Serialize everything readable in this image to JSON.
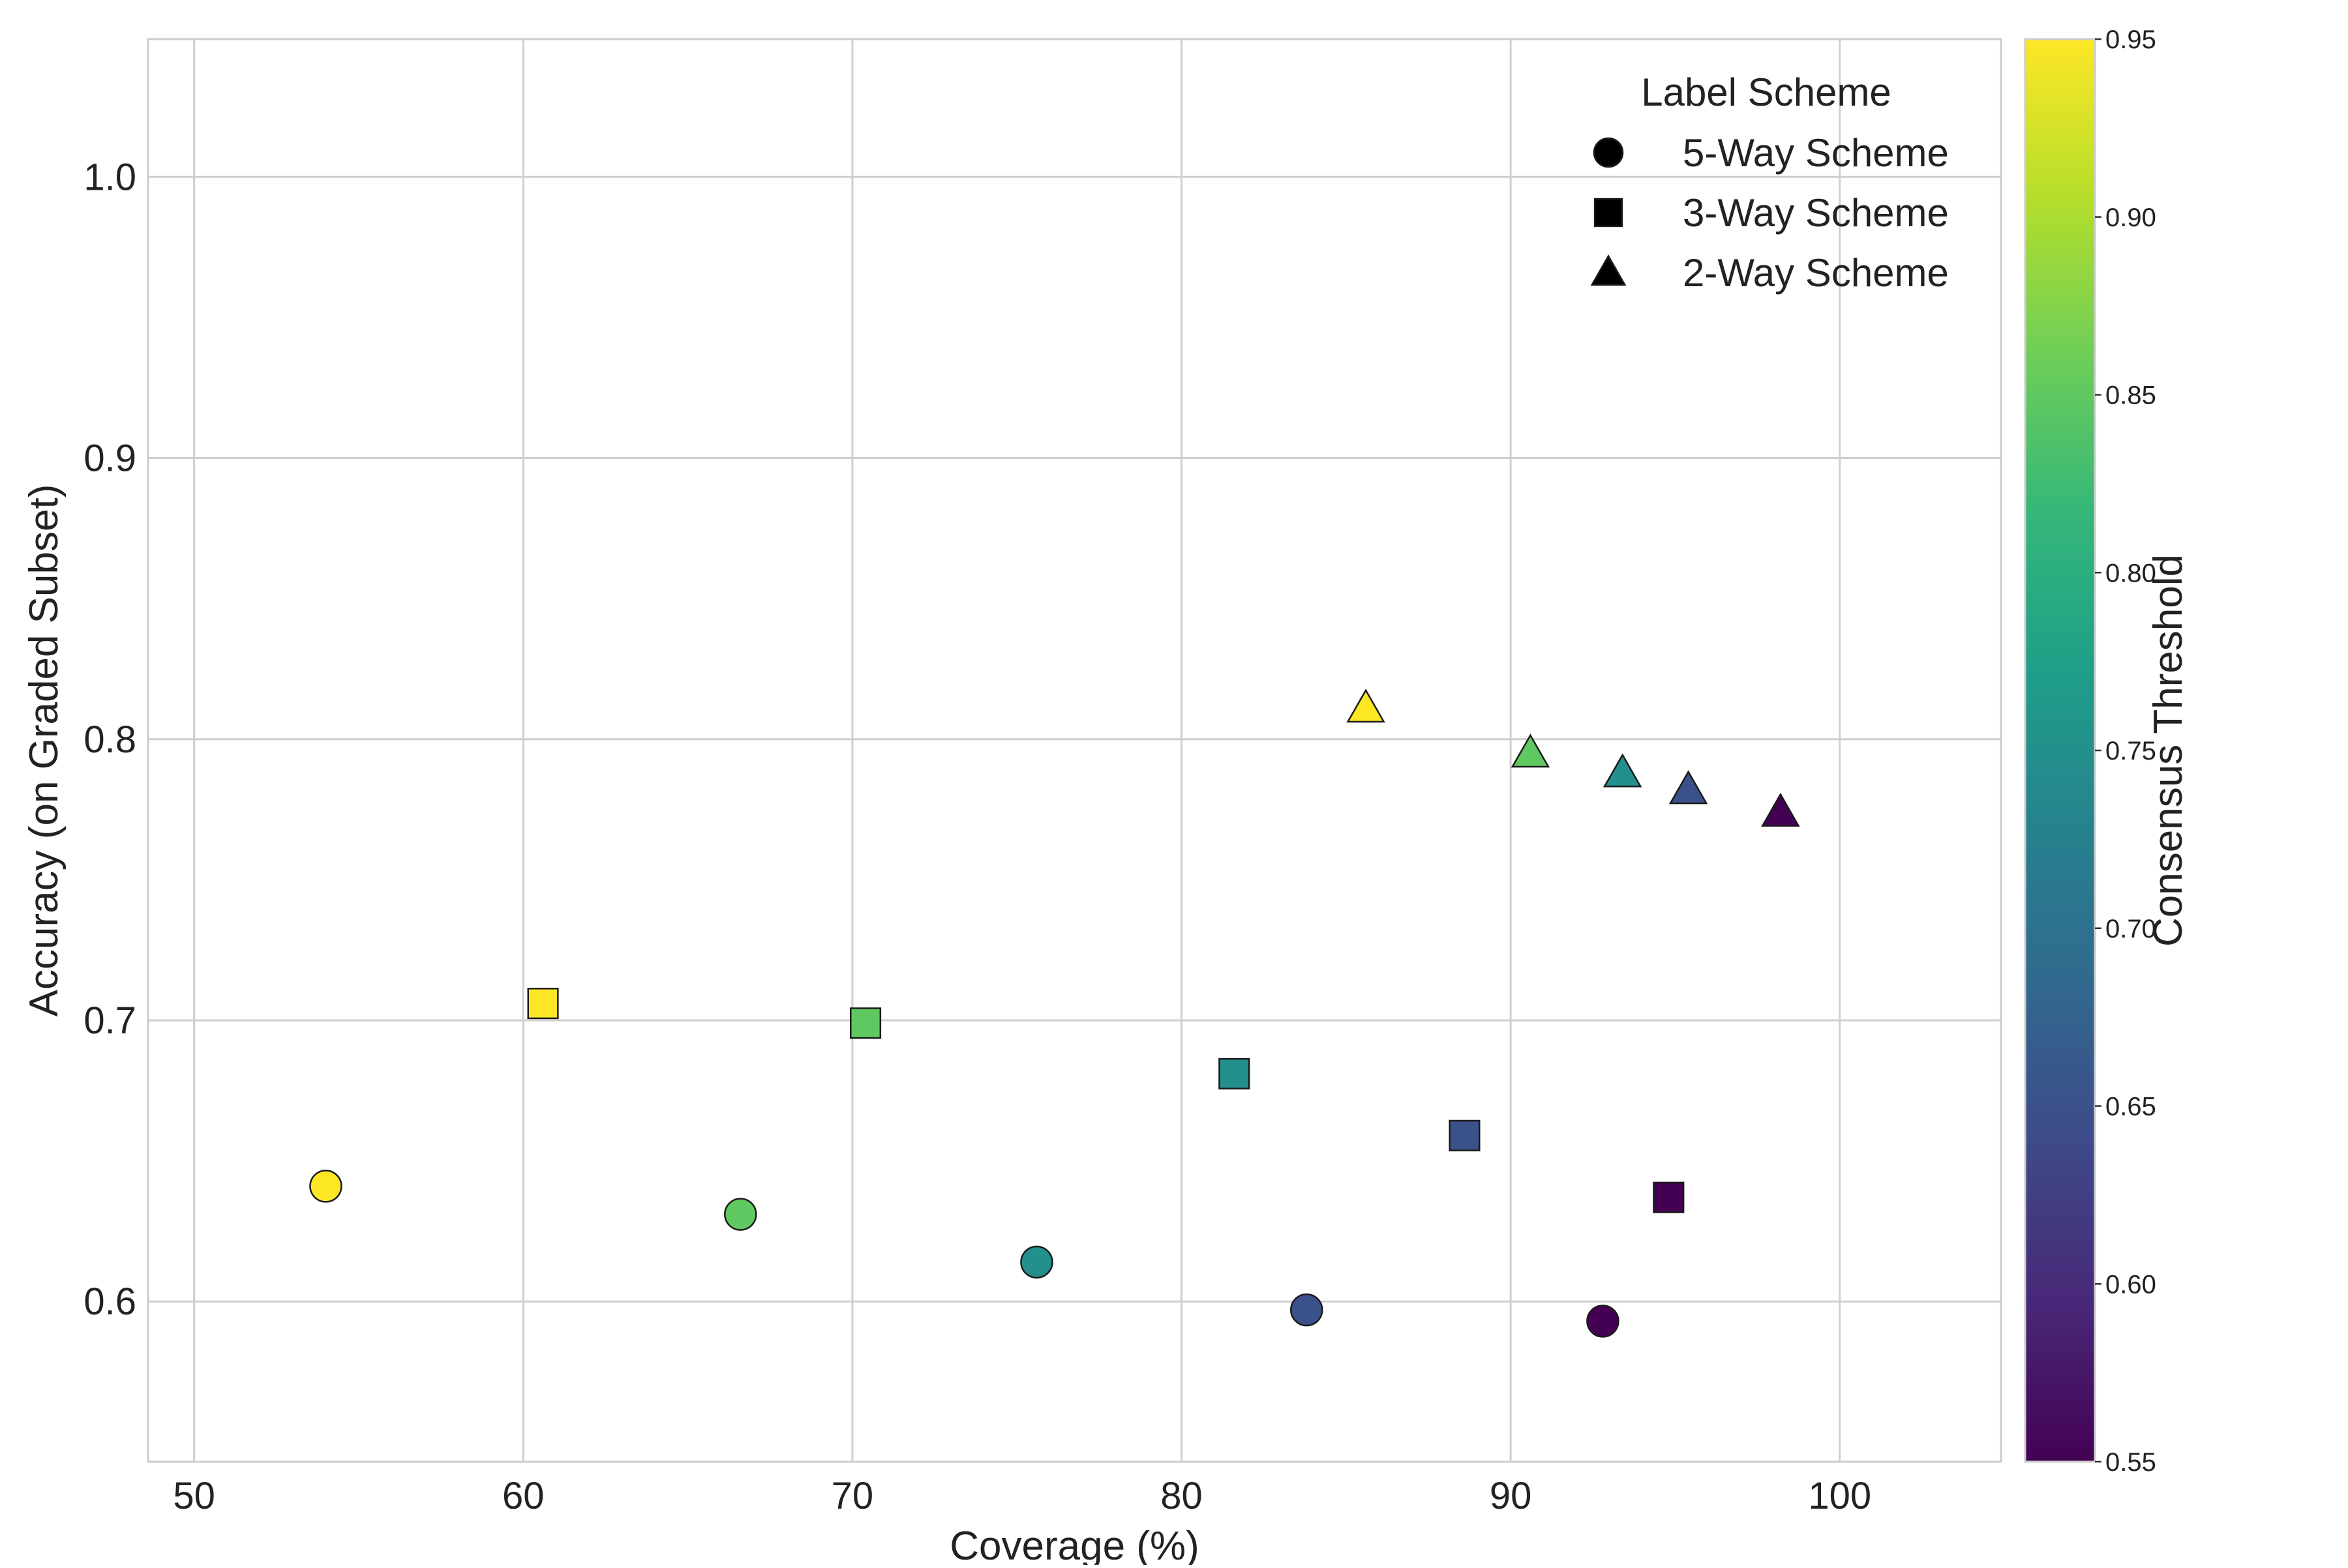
{
  "chart_data": {
    "type": "scatter",
    "title": "",
    "xlabel": "Coverage (%)",
    "ylabel": "Accuracy (on Graded Subset)",
    "xlim": [
      48.6,
      104.9
    ],
    "ylim": [
      0.543,
      1.049
    ],
    "xticks": [
      50,
      60,
      70,
      80,
      90,
      100
    ],
    "xtick_labels": [
      "50",
      "60",
      "70",
      "80",
      "90",
      "100"
    ],
    "yticks": [
      0.6,
      0.7,
      0.8,
      0.9,
      1.0
    ],
    "ytick_labels": [
      "0.6",
      "0.7",
      "0.8",
      "0.9",
      "1.0"
    ],
    "grid": true,
    "legend": {
      "title": "Label Scheme",
      "placement": "top-right",
      "entries": [
        {
          "label": "5-Way Scheme",
          "marker": "circle"
        },
        {
          "label": "3-Way Scheme",
          "marker": "square"
        },
        {
          "label": "2-Way Scheme",
          "marker": "triangle"
        }
      ]
    },
    "colorbar": {
      "label": "Consensus Threshold",
      "colormap": "viridis",
      "range": [
        0.55,
        0.95
      ],
      "ticks": [
        0.55,
        0.6,
        0.65,
        0.7,
        0.75,
        0.8,
        0.85,
        0.9,
        0.95
      ],
      "tick_labels": [
        "0.55",
        "0.60",
        "0.65",
        "0.70",
        "0.75",
        "0.80",
        "0.85",
        "0.90",
        "0.95"
      ],
      "stops": [
        "#440154",
        "#482878",
        "#3e4989",
        "#31688e",
        "#26828e",
        "#1f9e89",
        "#35b779",
        "#6ece58",
        "#b5de2b",
        "#fde725"
      ]
    },
    "series": [
      {
        "name": "5-Way Scheme",
        "marker": "circle",
        "points": [
          {
            "x": 54.0,
            "y": 0.641,
            "threshold": 0.95
          },
          {
            "x": 66.6,
            "y": 0.631,
            "threshold": 0.85
          },
          {
            "x": 75.6,
            "y": 0.614,
            "threshold": 0.75
          },
          {
            "x": 83.8,
            "y": 0.597,
            "threshold": 0.65
          },
          {
            "x": 92.8,
            "y": 0.593,
            "threshold": 0.55
          }
        ]
      },
      {
        "name": "3-Way Scheme",
        "marker": "square",
        "points": [
          {
            "x": 60.6,
            "y": 0.706,
            "threshold": 0.95
          },
          {
            "x": 70.4,
            "y": 0.699,
            "threshold": 0.85
          },
          {
            "x": 81.6,
            "y": 0.681,
            "threshold": 0.75
          },
          {
            "x": 88.6,
            "y": 0.659,
            "threshold": 0.65
          },
          {
            "x": 94.8,
            "y": 0.637,
            "threshold": 0.55
          }
        ]
      },
      {
        "name": "2-Way Scheme",
        "marker": "triangle",
        "points": [
          {
            "x": 85.6,
            "y": 0.811,
            "threshold": 0.95
          },
          {
            "x": 90.6,
            "y": 0.795,
            "threshold": 0.85
          },
          {
            "x": 93.4,
            "y": 0.788,
            "threshold": 0.75
          },
          {
            "x": 95.4,
            "y": 0.782,
            "threshold": 0.65
          },
          {
            "x": 98.2,
            "y": 0.774,
            "threshold": 0.55
          }
        ]
      }
    ],
    "colors": {
      "background": "#ffffff",
      "grid": "#cfcfcf",
      "axis": "#cccccc",
      "marker_edge": "#1a1a1a",
      "text": "#222222"
    }
  }
}
